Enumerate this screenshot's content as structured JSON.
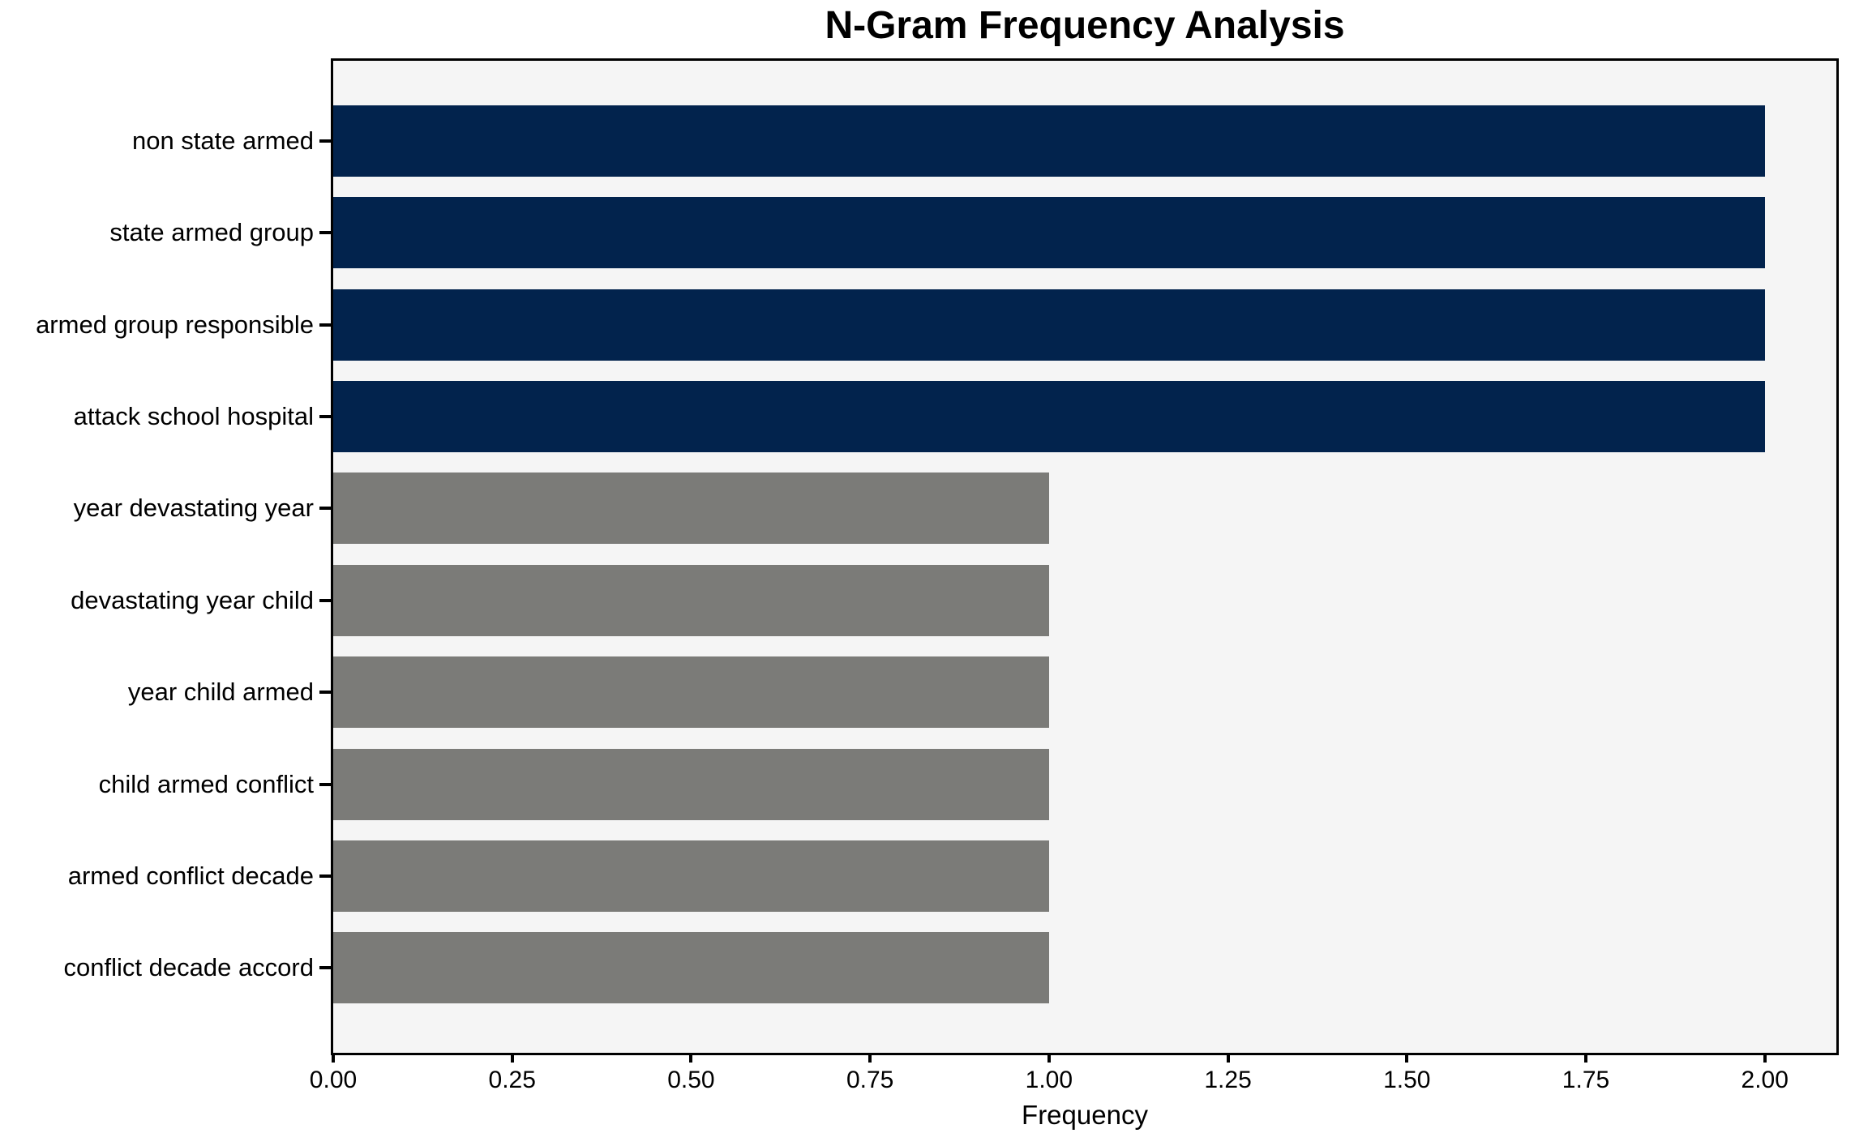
{
  "chart_data": {
    "type": "bar",
    "orientation": "horizontal",
    "title": "N-Gram Frequency Analysis",
    "xlabel": "Frequency",
    "ylabel": "",
    "categories": [
      "non state armed",
      "state armed group",
      "armed group responsible",
      "attack school hospital",
      "year devastating year",
      "devastating year child",
      "year child armed",
      "child armed conflict",
      "armed conflict decade",
      "conflict decade accord"
    ],
    "values": [
      2,
      2,
      2,
      2,
      1,
      1,
      1,
      1,
      1,
      1
    ],
    "xlim": [
      0,
      2.1
    ],
    "xticks": [
      0.0,
      0.25,
      0.5,
      0.75,
      1.0,
      1.25,
      1.5,
      1.75,
      2.0
    ],
    "xtick_labels": [
      "0.00",
      "0.25",
      "0.50",
      "0.75",
      "1.00",
      "1.25",
      "1.50",
      "1.75",
      "2.00"
    ],
    "grid": false,
    "legend": null,
    "colors": {
      "bar_highlight": "#02234d",
      "bar_default": "#7b7b78",
      "plot_background": "#f5f5f5",
      "figure_background": "#ffffff",
      "spine": "#000000",
      "text": "#000000"
    },
    "bar_colors": [
      "#02234d",
      "#02234d",
      "#02234d",
      "#02234d",
      "#7b7b78",
      "#7b7b78",
      "#7b7b78",
      "#7b7b78",
      "#7b7b78",
      "#7b7b78"
    ]
  }
}
